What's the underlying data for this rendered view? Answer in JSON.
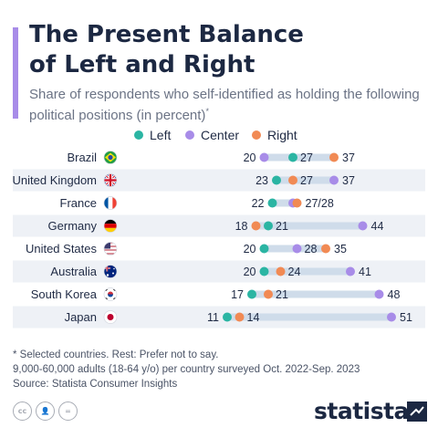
{
  "header": {
    "title_line1": "The Present Balance",
    "title_line2": "of Left and Right",
    "subtitle": "Share of respondents who self-identified as holding the following political positions (in percent)",
    "subtitle_mark": "*"
  },
  "colors": {
    "left": "#2bb5a3",
    "center": "#a88ce8",
    "right": "#f18a54",
    "track": "#cfdcea",
    "row_band": "#eef1f6",
    "accent": "#a88ce8"
  },
  "chart_data": {
    "type": "dumbbell",
    "legend": {
      "placement": "top",
      "items": [
        {
          "name": "Left",
          "color": "#2bb5a3"
        },
        {
          "name": "Center",
          "color": "#a88ce8"
        },
        {
          "name": "Right",
          "color": "#f18a54"
        }
      ]
    },
    "countries": [
      {
        "name": "Brazil",
        "flag": "brazil-flag",
        "left": 27,
        "center": 20,
        "right": 37,
        "labels": [
          "20",
          "27",
          "37"
        ]
      },
      {
        "name": "United Kingdom",
        "flag": "uk-flag",
        "left": 23,
        "center": 37,
        "right": 27,
        "labels": [
          "23",
          "27",
          "37"
        ]
      },
      {
        "name": "France",
        "flag": "france-flag",
        "left": 22,
        "center": 27,
        "right": 28,
        "labels": [
          "22",
          "27/28"
        ]
      },
      {
        "name": "Germany",
        "flag": "germany-flag",
        "left": 21,
        "center": 44,
        "right": 18,
        "labels": [
          "18",
          "21",
          "44"
        ]
      },
      {
        "name": "United States",
        "flag": "usa-flag",
        "left": 20,
        "center": 28,
        "right": 35,
        "labels": [
          "20",
          "28",
          "35"
        ]
      },
      {
        "name": "Australia",
        "flag": "australia-flag",
        "left": 20,
        "center": 41,
        "right": 24,
        "labels": [
          "20",
          "24",
          "41"
        ]
      },
      {
        "name": "South Korea",
        "flag": "south-korea-flag",
        "left": 17,
        "center": 48,
        "right": 21,
        "labels": [
          "17",
          "21",
          "48"
        ]
      },
      {
        "name": "Japan",
        "flag": "japan-flag",
        "left": 11,
        "center": 51,
        "right": 14,
        "labels": [
          "11",
          "14",
          "51"
        ]
      }
    ]
  },
  "footer": {
    "note1": "* Selected countries. Rest: Prefer not to say.",
    "note2": "9,000-60,000 adults (18-64 y/o) per country surveyed Oct. 2022-Sep. 2023",
    "source": "Source: Statista Consumer Insights",
    "logo": "statista",
    "license_icons": [
      "cc-icon",
      "by-icon",
      "nd-icon"
    ]
  }
}
